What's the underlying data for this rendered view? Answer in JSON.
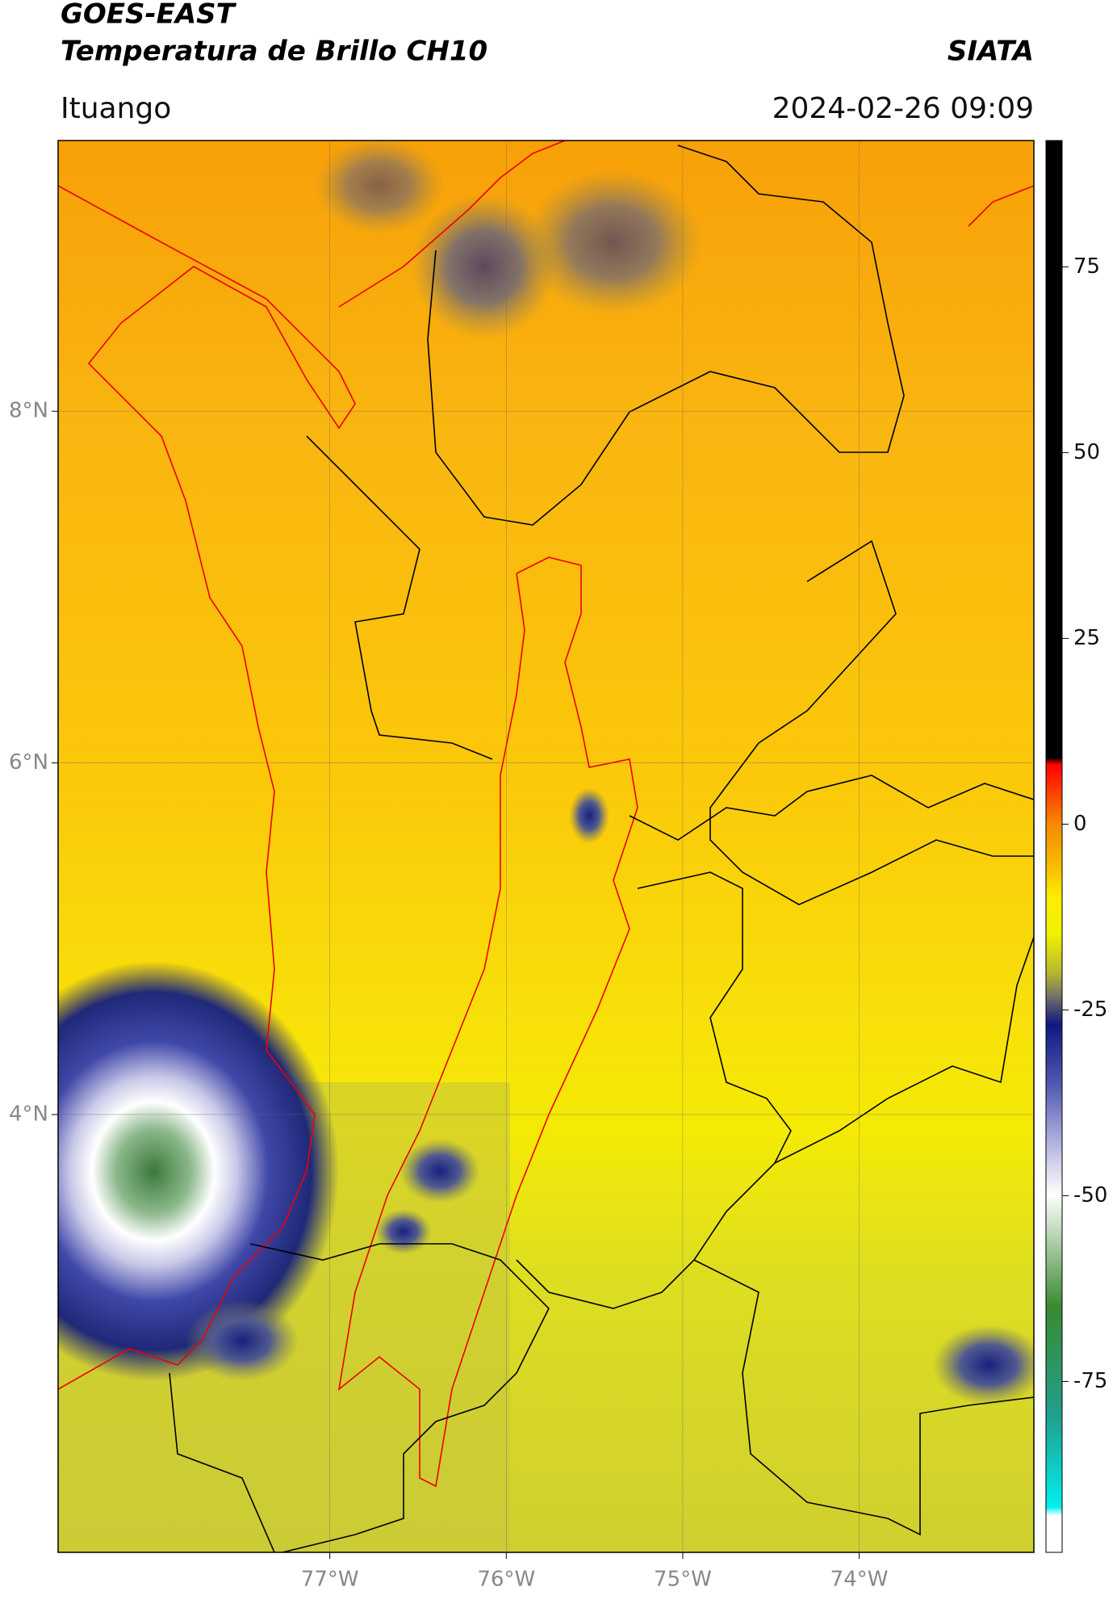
{
  "header": {
    "title": "GOES-EAST",
    "subtitle": "Temperatura de Brillo CH10",
    "organization": "SIATA",
    "location": "Ituango",
    "datetime": "2024-02-26 09:09"
  },
  "map": {
    "xlim": [
      -78.54,
      -73.01
    ],
    "ylim": [
      1.51,
      9.54
    ],
    "xticks": [
      {
        "value": -77,
        "label": "77°W"
      },
      {
        "value": -76,
        "label": "76°W"
      },
      {
        "value": -75,
        "label": "75°W"
      },
      {
        "value": -74,
        "label": "74°W"
      }
    ],
    "yticks": [
      {
        "value": 4,
        "label": "4°N"
      },
      {
        "value": 6,
        "label": "6°N"
      },
      {
        "value": 8,
        "label": "8°N"
      }
    ],
    "grid": true
  },
  "colorbar": {
    "lim": [
      -98,
      92
    ],
    "ticks": [
      -75,
      -50,
      -25,
      0,
      25,
      50,
      75
    ]
  }
}
